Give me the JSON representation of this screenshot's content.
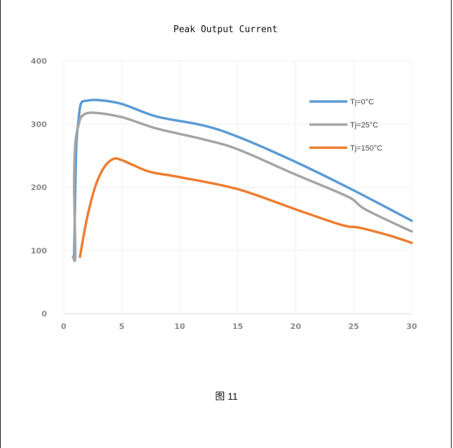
{
  "chart_data": {
    "type": "line",
    "title": "Peak Output Current",
    "xlabel": "",
    "ylabel": "",
    "xlim": [
      0,
      30
    ],
    "ylim": [
      0,
      400
    ],
    "x_ticks": [
      0,
      5,
      10,
      15,
      20,
      25,
      30
    ],
    "y_ticks": [
      0,
      100,
      200,
      300,
      400
    ],
    "grid": true,
    "legend_position": "top-right",
    "series": [
      {
        "name": "Tj=0°C",
        "color": "#5b9bd5",
        "points": [
          [
            0.9,
            90
          ],
          [
            1.0,
            200
          ],
          [
            1.1,
            270
          ],
          [
            1.3,
            310
          ],
          [
            1.5,
            333
          ],
          [
            2.0,
            337
          ],
          [
            3.0,
            338
          ],
          [
            5.0,
            332
          ],
          [
            8.0,
            312
          ],
          [
            12.0,
            298
          ],
          [
            15.0,
            280
          ],
          [
            20.0,
            240
          ],
          [
            25.0,
            195
          ],
          [
            30.0,
            147
          ]
        ]
      },
      {
        "name": "Tj=25°C",
        "color": "#a5a5a5",
        "points": [
          [
            0.8,
            90
          ],
          [
            1.0,
            92
          ],
          [
            0.9,
            200
          ],
          [
            1.0,
            270
          ],
          [
            1.3,
            300
          ],
          [
            1.6,
            313
          ],
          [
            2.5,
            318
          ],
          [
            5.0,
            311
          ],
          [
            8.0,
            293
          ],
          [
            12.0,
            276
          ],
          [
            15.0,
            260
          ],
          [
            20.0,
            220
          ],
          [
            24.5,
            185
          ],
          [
            26.0,
            165
          ],
          [
            30.0,
            130
          ]
        ]
      },
      {
        "name": "Tj=150°C",
        "color": "#ed7d31",
        "points": [
          [
            1.4,
            90
          ],
          [
            2.0,
            150
          ],
          [
            2.7,
            200
          ],
          [
            3.5,
            232
          ],
          [
            4.3,
            245
          ],
          [
            5.0,
            243
          ],
          [
            6.0,
            235
          ],
          [
            7.5,
            224
          ],
          [
            10.0,
            216
          ],
          [
            15.0,
            197
          ],
          [
            20.0,
            165
          ],
          [
            24.0,
            140
          ],
          [
            25.5,
            136
          ],
          [
            28.0,
            124
          ],
          [
            30.0,
            112
          ]
        ]
      }
    ]
  },
  "caption": "图 11"
}
